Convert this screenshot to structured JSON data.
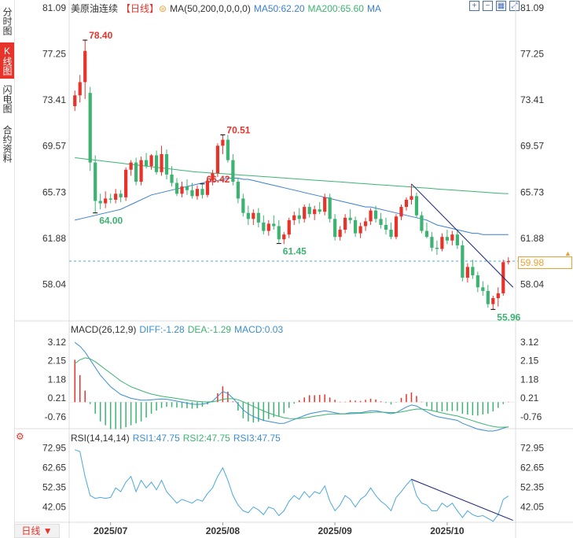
{
  "sidebar": {
    "tabs": [
      {
        "label": "分时图",
        "active": false
      },
      {
        "label": "K线图",
        "active": true
      },
      {
        "label": "闪电图",
        "active": false
      },
      {
        "label": "合约资料",
        "active": false
      }
    ]
  },
  "header": {
    "symbol": "美原油连续",
    "period_tag": "【日线】",
    "ma_label": "MA(50,200,0,0,0,0)",
    "ma50_label": "MA50:62.20",
    "ma200_label": "MA200:65.60",
    "ma_extra": "MA"
  },
  "macd_legend": {
    "title": "MACD(26,12,9)",
    "diff": "DIFF:-1.28",
    "dea": "DEA:-1.29",
    "macd": "MACD:0.03"
  },
  "rsi_legend": {
    "title": "RSI(14,14,14)",
    "rsi1": "RSI1:47.75",
    "rsi2": "RSI2:47.75",
    "rsi3": "RSI3:47.75"
  },
  "period_button": "日线",
  "last_price": "59.98",
  "colors": {
    "up": "#e8332b",
    "down": "#3cb371",
    "ma50": "#3a7fd0",
    "ma200": "#3cb371",
    "trend": "#1a237e",
    "diff": "#3a8fd0",
    "dea": "#3cb371",
    "rsi": "#4aa8dd",
    "last": "#f0a030"
  },
  "chart_data": {
    "type": "candlestick",
    "x_labels": [
      "2025/07",
      "2025/08",
      "2025/09",
      "2025/10"
    ],
    "price_axis_ticks": [
      "81.09",
      "77.25",
      "73.41",
      "69.57",
      "65.73",
      "61.88",
      "58.04"
    ],
    "price_ylim": [
      55.0,
      81.09
    ],
    "annotations": [
      {
        "text": "78.40",
        "value": 78.4,
        "kind": "high"
      },
      {
        "text": "64.00",
        "value": 64.0,
        "kind": "low"
      },
      {
        "text": "70.51",
        "value": 70.51,
        "kind": "high"
      },
      {
        "text": "61.45",
        "value": 61.45,
        "kind": "low"
      },
      {
        "text": "66.42",
        "value": 66.42,
        "kind": "high"
      },
      {
        "text": "55.96",
        "value": 55.96,
        "kind": "low"
      }
    ],
    "last_value": 59.98,
    "candles": [
      [
        72.9,
        74.2,
        72.5,
        73.8
      ],
      [
        73.8,
        75.5,
        73.2,
        74.9
      ],
      [
        74.9,
        78.4,
        73.5,
        77.5
      ],
      [
        74.0,
        74.5,
        67.5,
        68.2
      ],
      [
        68.2,
        68.8,
        64.0,
        65.0
      ],
      [
        65.0,
        65.6,
        64.3,
        64.8
      ],
      [
        64.8,
        65.8,
        64.4,
        65.2
      ],
      [
        65.2,
        65.6,
        64.8,
        65.1
      ],
      [
        65.1,
        66.0,
        64.8,
        65.6
      ],
      [
        65.6,
        65.9,
        64.9,
        65.3
      ],
      [
        65.3,
        67.8,
        65.0,
        67.6
      ],
      [
        67.6,
        68.4,
        67.1,
        68.2
      ],
      [
        68.2,
        68.6,
        66.3,
        66.6
      ],
      [
        66.6,
        68.7,
        66.3,
        68.4
      ],
      [
        68.4,
        69.0,
        67.7,
        67.9
      ],
      [
        67.9,
        68.9,
        67.6,
        68.8
      ],
      [
        68.8,
        69.2,
        67.2,
        67.4
      ],
      [
        67.4,
        69.6,
        67.1,
        68.9
      ],
      [
        68.9,
        69.3,
        66.8,
        67.2
      ],
      [
        67.2,
        67.9,
        66.2,
        66.5
      ],
      [
        66.5,
        66.9,
        65.4,
        65.6
      ],
      [
        65.6,
        66.6,
        65.3,
        66.2
      ],
      [
        66.2,
        66.8,
        65.5,
        65.9
      ],
      [
        65.9,
        66.5,
        65.2,
        65.4
      ],
      [
        65.4,
        66.3,
        65.1,
        66.0
      ],
      [
        66.0,
        66.4,
        65.2,
        65.5
      ],
      [
        65.5,
        66.9,
        65.3,
        66.7
      ],
      [
        66.7,
        67.6,
        66.3,
        67.3
      ],
      [
        67.3,
        69.8,
        67.0,
        69.6
      ],
      [
        69.6,
        70.5,
        68.9,
        70.1
      ],
      [
        70.1,
        70.5,
        68.2,
        68.4
      ],
      [
        68.4,
        68.9,
        66.3,
        66.6
      ],
      [
        66.6,
        66.9,
        64.8,
        65.2
      ],
      [
        65.2,
        65.6,
        63.7,
        64.0
      ],
      [
        64.0,
        64.6,
        63.0,
        63.5
      ],
      [
        63.5,
        64.3,
        63.0,
        64.0
      ],
      [
        64.0,
        64.4,
        62.8,
        63.2
      ],
      [
        63.2,
        63.8,
        62.2,
        62.5
      ],
      [
        62.5,
        63.4,
        62.1,
        63.1
      ],
      [
        63.1,
        63.8,
        62.6,
        62.9
      ],
      [
        62.9,
        63.4,
        61.5,
        61.8
      ],
      [
        61.8,
        62.4,
        61.4,
        62.2
      ],
      [
        62.2,
        63.6,
        61.9,
        63.4
      ],
      [
        63.4,
        64.1,
        63.0,
        63.8
      ],
      [
        63.8,
        64.4,
        63.1,
        63.5
      ],
      [
        63.5,
        64.7,
        63.2,
        64.5
      ],
      [
        64.5,
        64.8,
        63.6,
        63.9
      ],
      [
        63.9,
        64.6,
        63.4,
        64.3
      ],
      [
        64.3,
        64.9,
        63.9,
        64.1
      ],
      [
        64.1,
        65.6,
        63.8,
        65.3
      ],
      [
        65.3,
        65.6,
        63.2,
        63.5
      ],
      [
        63.5,
        63.9,
        61.7,
        62.0
      ],
      [
        62.0,
        62.9,
        61.7,
        62.6
      ],
      [
        62.6,
        63.9,
        62.3,
        63.6
      ],
      [
        63.6,
        64.3,
        63.1,
        63.4
      ],
      [
        63.4,
        63.7,
        62.0,
        62.3
      ],
      [
        62.3,
        63.2,
        61.9,
        62.9
      ],
      [
        62.9,
        63.6,
        62.5,
        63.3
      ],
      [
        63.3,
        64.4,
        63.0,
        64.2
      ],
      [
        64.2,
        64.6,
        63.2,
        63.5
      ],
      [
        63.5,
        64.0,
        62.7,
        63.0
      ],
      [
        63.0,
        63.6,
        62.2,
        62.6
      ],
      [
        62.6,
        63.2,
        61.8,
        62.0
      ],
      [
        62.0,
        63.9,
        61.8,
        63.7
      ],
      [
        63.7,
        64.7,
        63.4,
        64.5
      ],
      [
        64.5,
        65.3,
        64.2,
        65.1
      ],
      [
        65.1,
        66.4,
        64.7,
        65.4
      ],
      [
        65.4,
        65.7,
        63.6,
        63.8
      ],
      [
        63.8,
        64.1,
        62.3,
        62.5
      ],
      [
        62.5,
        63.2,
        61.9,
        62.0
      ],
      [
        62.0,
        62.4,
        60.8,
        61.1
      ],
      [
        61.1,
        61.7,
        60.5,
        61.0
      ],
      [
        61.0,
        62.3,
        60.8,
        62.0
      ],
      [
        62.0,
        62.6,
        61.4,
        61.7
      ],
      [
        61.7,
        62.5,
        61.3,
        62.2
      ],
      [
        62.2,
        62.6,
        61.0,
        61.3
      ],
      [
        61.3,
        61.7,
        58.3,
        58.6
      ],
      [
        58.6,
        59.8,
        58.2,
        59.5
      ],
      [
        59.5,
        60.1,
        58.5,
        58.8
      ],
      [
        58.8,
        59.1,
        57.4,
        57.8
      ],
      [
        57.8,
        58.3,
        57.1,
        57.5
      ],
      [
        57.5,
        58.0,
        56.1,
        56.4
      ],
      [
        56.4,
        57.1,
        55.96,
        56.9
      ],
      [
        56.9,
        57.8,
        56.2,
        57.3
      ],
      [
        57.3,
        60.1,
        57.1,
        59.9
      ],
      [
        59.9,
        60.3,
        59.7,
        59.98
      ]
    ],
    "ma50": [
      63.4,
      63.5,
      63.6,
      63.7,
      63.8,
      63.9,
      64.0,
      64.1,
      64.2,
      64.3,
      64.5,
      64.7,
      64.9,
      65.1,
      65.3,
      65.5,
      65.6,
      65.7,
      65.8,
      65.9,
      66.0,
      66.1,
      66.2,
      66.3,
      66.4,
      66.5,
      66.6,
      66.6,
      66.7,
      66.8,
      66.9,
      66.9,
      66.9,
      66.8,
      66.8,
      66.7,
      66.6,
      66.5,
      66.4,
      66.3,
      66.2,
      66.1,
      66.0,
      65.9,
      65.8,
      65.7,
      65.6,
      65.5,
      65.4,
      65.3,
      65.2,
      65.1,
      65.0,
      64.9,
      64.8,
      64.7,
      64.6,
      64.5,
      64.5,
      64.4,
      64.3,
      64.2,
      64.1,
      64.0,
      63.9,
      63.8,
      63.7,
      63.6,
      63.5,
      63.4,
      63.2,
      63.0,
      62.9,
      62.8,
      62.7,
      62.6,
      62.5,
      62.4,
      62.3,
      62.3,
      62.2,
      62.2,
      62.2,
      62.2,
      62.2,
      62.2
    ],
    "ma200": [
      68.6,
      68.55,
      68.5,
      68.45,
      68.4,
      68.35,
      68.3,
      68.25,
      68.2,
      68.15,
      68.1,
      68.05,
      68.0,
      67.95,
      67.9,
      67.85,
      67.8,
      67.75,
      67.7,
      67.65,
      67.6,
      67.55,
      67.5,
      67.45,
      67.4,
      67.38,
      67.35,
      67.32,
      67.3,
      67.27,
      67.24,
      67.21,
      67.18,
      67.15,
      67.12,
      67.09,
      67.06,
      67.03,
      67.0,
      66.97,
      66.94,
      66.91,
      66.88,
      66.85,
      66.82,
      66.79,
      66.76,
      66.73,
      66.7,
      66.67,
      66.64,
      66.61,
      66.58,
      66.55,
      66.52,
      66.49,
      66.46,
      66.43,
      66.4,
      66.37,
      66.34,
      66.31,
      66.28,
      66.25,
      66.22,
      66.19,
      66.16,
      66.13,
      66.1,
      66.07,
      66.04,
      66.0,
      65.97,
      65.94,
      65.91,
      65.88,
      65.85,
      65.82,
      65.79,
      65.76,
      65.73,
      65.7,
      65.67,
      65.64,
      65.62,
      65.6
    ],
    "trendline": {
      "from_index": 66,
      "from_value": 66.42,
      "to_index": 85,
      "to_value": 57.8
    },
    "macd_axis_ticks": [
      "3.12",
      "2.15",
      "1.18",
      "0.21",
      "-0.76"
    ],
    "macd_ylim": [
      -1.5,
      3.4
    ],
    "diff": [
      3.1,
      2.9,
      2.6,
      2.2,
      1.8,
      1.4,
      1.1,
      0.8,
      0.6,
      0.4,
      0.3,
      0.2,
      0.15,
      0.1,
      0.1,
      0.12,
      0.14,
      0.16,
      0.15,
      0.1,
      0.05,
      0.0,
      -0.05,
      -0.1,
      -0.12,
      -0.1,
      -0.05,
      0.05,
      0.3,
      0.55,
      0.45,
      0.2,
      -0.1,
      -0.4,
      -0.6,
      -0.75,
      -0.85,
      -0.95,
      -1.0,
      -1.05,
      -1.1,
      -1.1,
      -1.0,
      -0.9,
      -0.8,
      -0.7,
      -0.6,
      -0.55,
      -0.5,
      -0.45,
      -0.5,
      -0.55,
      -0.6,
      -0.6,
      -0.55,
      -0.55,
      -0.55,
      -0.5,
      -0.45,
      -0.45,
      -0.5,
      -0.55,
      -0.6,
      -0.55,
      -0.4,
      -0.25,
      -0.15,
      -0.2,
      -0.35,
      -0.5,
      -0.65,
      -0.75,
      -0.8,
      -0.85,
      -0.9,
      -0.95,
      -1.1,
      -1.2,
      -1.3,
      -1.4,
      -1.45,
      -1.5,
      -1.5,
      -1.45,
      -1.35,
      -1.28
    ],
    "dea": [
      2.0,
      2.2,
      2.3,
      2.25,
      2.1,
      1.9,
      1.7,
      1.5,
      1.3,
      1.1,
      0.95,
      0.8,
      0.7,
      0.6,
      0.5,
      0.42,
      0.36,
      0.31,
      0.27,
      0.23,
      0.19,
      0.15,
      0.11,
      0.07,
      0.04,
      0.02,
      0.01,
      0.02,
      0.07,
      0.14,
      0.18,
      0.18,
      0.12,
      0.02,
      -0.1,
      -0.22,
      -0.34,
      -0.46,
      -0.56,
      -0.66,
      -0.74,
      -0.81,
      -0.85,
      -0.86,
      -0.85,
      -0.82,
      -0.78,
      -0.73,
      -0.69,
      -0.65,
      -0.62,
      -0.61,
      -0.61,
      -0.61,
      -0.6,
      -0.59,
      -0.58,
      -0.56,
      -0.54,
      -0.52,
      -0.52,
      -0.53,
      -0.54,
      -0.54,
      -0.51,
      -0.46,
      -0.4,
      -0.36,
      -0.36,
      -0.39,
      -0.44,
      -0.5,
      -0.56,
      -0.62,
      -0.67,
      -0.72,
      -0.8,
      -0.88,
      -0.96,
      -1.05,
      -1.13,
      -1.2,
      -1.26,
      -1.3,
      -1.3,
      -1.29
    ],
    "rsi_axis_ticks": [
      "72.95",
      "62.65",
      "52.35",
      "42.05"
    ],
    "rsi_ylim": [
      34,
      76
    ],
    "rsi": [
      72.0,
      71.0,
      58.0,
      48.0,
      46.5,
      47.0,
      46.5,
      47.0,
      52.0,
      50.0,
      55.0,
      58.0,
      50.0,
      56.0,
      52.0,
      55.0,
      51.0,
      56.0,
      50.0,
      47.0,
      44.0,
      46.0,
      45.0,
      44.0,
      46.0,
      45.0,
      49.0,
      52.0,
      58.0,
      62.5,
      56.0,
      48.0,
      43.0,
      40.0,
      39.0,
      42.0,
      40.5,
      38.0,
      42.0,
      41.0,
      37.5,
      40.0,
      45.0,
      48.0,
      46.0,
      50.0,
      47.0,
      50.0,
      49.0,
      53.0,
      45.0,
      40.0,
      43.0,
      48.0,
      46.0,
      42.0,
      46.0,
      48.0,
      52.0,
      48.0,
      45.0,
      43.0,
      40.0,
      47.0,
      50.0,
      53.5,
      56.5,
      48.0,
      44.0,
      43.0,
      40.0,
      40.0,
      44.0,
      42.0,
      44.0,
      40.0,
      36.5,
      40.0,
      38.0,
      37.0,
      37.5,
      36.0,
      34.5,
      38.0,
      46.0,
      47.75
    ],
    "rsi_trendline": {
      "from_index": 66,
      "from_value": 56.5,
      "to_index": 85,
      "to_value": 35.0
    }
  }
}
